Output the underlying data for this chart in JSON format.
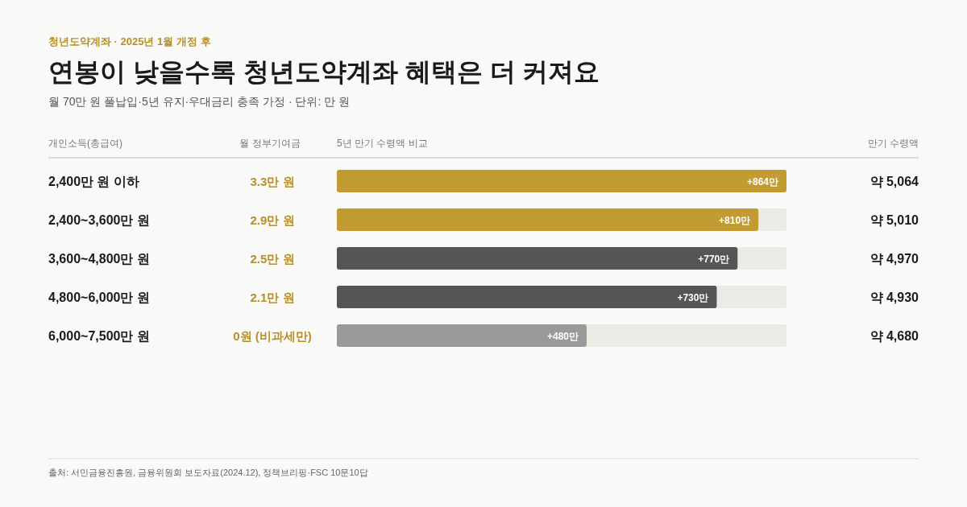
{
  "chart_data": {
    "type": "bar",
    "orientation": "horizontal",
    "title": "연봉이 낮을수록 청년도약계좌 혜택은 더 커져요",
    "subtitle": "월 70만 원 풀납입·5년 유지·우대금리 충족 가정 · 단위: 만 원",
    "categories": [
      "2,400만 원 이하",
      "2,400~3,600만 원",
      "3,600~4,800만 원",
      "4,800~6,000만 원",
      "6,000~7,500만 원"
    ],
    "values": [
      864,
      810,
      770,
      730,
      480
    ],
    "value_labels": [
      "+864만",
      "+810만",
      "+770만",
      "+730만",
      "+480만"
    ],
    "colors": [
      "#c29b32",
      "#c29b32",
      "#555555",
      "#555555",
      "#9a9a9a"
    ],
    "annotations": [
      "청년도약계좌 · 2025년 1월 개정 후",
      "개인소득(총급여)",
      "월 정부기여금",
      "5년 만기 수령액 비교",
      "만기 수령액",
      "3.3만 원",
      "2.9만 원",
      "2.5만 원",
      "2.1만 원",
      "0원 (비과세만)",
      "약 5,064",
      "약 5,010",
      "약 4,970",
      "약 4,930",
      "약 4,680",
      "출처: 서민금융진흥원, 금융위원회 보도자료(2024.12), 정책브리핑·FSC 10문10답"
    ]
  }
}
